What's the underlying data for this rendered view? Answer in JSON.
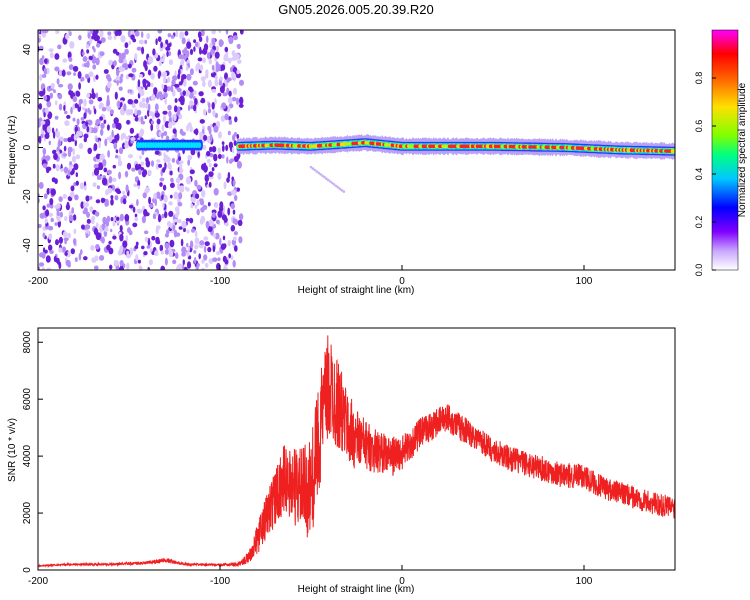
{
  "figure_title": "GN05.2026.005.20.39.R20",
  "chart_data": [
    {
      "type": "heatmap",
      "title": "",
      "xlabel": "Height of straight line (km)",
      "ylabel": "Frequency (Hz)",
      "xlim": [
        -200,
        150
      ],
      "ylim": [
        -50,
        48
      ],
      "xticks": [
        -200,
        -100,
        0,
        100
      ],
      "yticks": [
        -40,
        -20,
        0,
        20,
        40
      ],
      "grid": false,
      "colorbar": {
        "label": "Normalized spectral amplitude",
        "range": [
          0,
          1
        ],
        "ticks": [
          "0.0",
          "0.2",
          "0.4",
          "0.6",
          "0.8"
        ],
        "colors": [
          "#ffffff",
          "#c9a6ff",
          "#8000ff",
          "#0000ff",
          "#00c8ff",
          "#00ff80",
          "#80ff00",
          "#ffe000",
          "#ff6000",
          "#ff0000",
          "#ff00ff"
        ]
      },
      "regions": [
        {
          "x": [
            -200,
            -88
          ],
          "freq": [
            -50,
            48
          ],
          "level": 0.1,
          "color": "#8a2be2",
          "note_values": "sparse speckle noise"
        },
        {
          "x": [
            -145,
            -110
          ],
          "freq": [
            -2,
            3
          ],
          "level": 0.35,
          "color": "#00e0ff"
        },
        {
          "x": [
            -90,
            150
          ],
          "freq": [
            -1.5,
            2.5
          ],
          "level": 0.9,
          "color": "#ff2020"
        }
      ],
      "center_band": [
        {
          "x": -145,
          "freq": 1.0
        },
        {
          "x": -110,
          "freq": 1.0
        },
        {
          "x": -90,
          "freq": 0.5
        },
        {
          "x": -70,
          "freq": 1.0
        },
        {
          "x": -50,
          "freq": 0.5
        },
        {
          "x": -20,
          "freq": 2.0
        },
        {
          "x": 0,
          "freq": 0.5
        },
        {
          "x": 50,
          "freq": 0.5
        },
        {
          "x": 90,
          "freq": 0.0
        },
        {
          "x": 120,
          "freq": -1.0
        },
        {
          "x": 150,
          "freq": -1.5
        }
      ],
      "faint_streak": [
        {
          "x": -50,
          "freq": -8
        },
        {
          "x": -32,
          "freq": -18
        }
      ]
    },
    {
      "type": "line",
      "title": "",
      "xlabel": "Height of straight line (km)",
      "ylabel": "SNR (10 * v/v)",
      "xlim": [
        -200,
        150
      ],
      "ylim": [
        0,
        8500
      ],
      "xticks": [
        -200,
        -100,
        0,
        100
      ],
      "yticks": [
        0,
        2000,
        4000,
        6000,
        8000
      ],
      "grid": false,
      "series": [
        {
          "color": "#ee2020",
          "x": [
            -200,
            -180,
            -160,
            -140,
            -130,
            -120,
            -100,
            -90,
            -85,
            -80,
            -75,
            -70,
            -65,
            -60,
            -55,
            -50,
            -45,
            -40,
            -35,
            -30,
            -25,
            -20,
            -15,
            -10,
            -5,
            0,
            10,
            20,
            25,
            30,
            40,
            50,
            60,
            80,
            90,
            100,
            110,
            120,
            130,
            140,
            150
          ],
          "y": [
            150,
            200,
            200,
            250,
            350,
            200,
            180,
            200,
            400,
            1000,
            1800,
            2500,
            3200,
            3000,
            2800,
            2800,
            5000,
            6500,
            5800,
            5000,
            4600,
            4400,
            4200,
            4100,
            4000,
            4100,
            4800,
            5200,
            5400,
            5100,
            4700,
            4200,
            3900,
            3500,
            3300,
            3300,
            2900,
            2700,
            2500,
            2300,
            2200
          ],
          "noise": [
            20,
            30,
            40,
            60,
            80,
            40,
            30,
            60,
            200,
            500,
            800,
            1000,
            1200,
            1400,
            1500,
            1800,
            2000,
            2000,
            1600,
            1300,
            1100,
            900,
            800,
            700,
            700,
            600,
            550,
            500,
            500,
            500,
            450,
            450,
            450,
            450,
            450,
            450,
            400,
            400,
            400,
            400,
            400
          ]
        }
      ]
    }
  ]
}
